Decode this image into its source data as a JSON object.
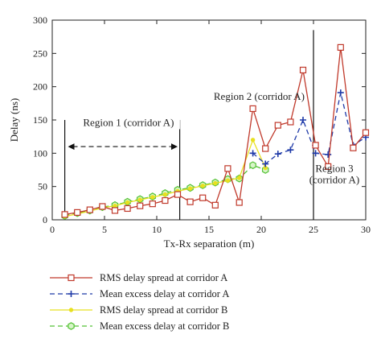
{
  "chart_data": {
    "type": "line",
    "xlabel": "Tx-Rx separation (m)",
    "ylabel": "Delay (ns)",
    "xlim": [
      0,
      30
    ],
    "ylim": [
      0,
      300
    ],
    "xticks": [
      "0",
      "5",
      "10",
      "15",
      "20",
      "25",
      "30"
    ],
    "yticks": [
      "0",
      "50",
      "100",
      "150",
      "200",
      "250",
      "300"
    ],
    "grid": false,
    "legend_position": "below",
    "series": [
      {
        "name": "RMS delay spread at corridor A",
        "color": "#c0392b",
        "line": "solid",
        "marker": "square",
        "x": [
          1.2,
          2.4,
          3.6,
          4.8,
          6.0,
          7.2,
          8.4,
          9.6,
          10.8,
          12.0,
          13.2,
          14.4,
          15.6,
          16.8,
          17.9,
          19.2,
          20.4,
          21.6,
          22.8,
          24.0,
          25.2,
          26.4,
          27.6,
          28.8,
          30.0
        ],
        "values": [
          8,
          11,
          15,
          20,
          14,
          17,
          21,
          24,
          29,
          38,
          27,
          33,
          22,
          77,
          26,
          167,
          107,
          142,
          147,
          225,
          112,
          80,
          259,
          108,
          131
        ]
      },
      {
        "name": "Mean excess delay at corridor A",
        "color": "#1f3aa8",
        "line": "dashed",
        "marker": "plus",
        "x": [
          19.2,
          20.4,
          21.6,
          22.8,
          24.0,
          25.2,
          26.4,
          27.6,
          28.8,
          30.0
        ],
        "values": [
          100,
          84,
          99,
          105,
          150,
          100,
          98,
          191,
          112,
          124
        ]
      },
      {
        "name": "RMS delay spread at corridor B",
        "color": "#e8e020",
        "line": "solid",
        "marker": "dot",
        "x": [
          1.2,
          2.4,
          3.6,
          4.8,
          6.0,
          7.2,
          8.4,
          9.6,
          10.8,
          12.0,
          13.2,
          14.4,
          15.6,
          16.8,
          17.9,
          19.2,
          20.4
        ],
        "values": [
          5,
          9,
          13,
          18,
          21,
          26,
          30,
          34,
          38,
          43,
          47,
          51,
          55,
          59,
          63,
          120,
          78
        ]
      },
      {
        "name": "Mean excess delay at corridor B",
        "color": "#55c236",
        "line": "dashed",
        "marker": "hexagon",
        "x": [
          1.2,
          2.4,
          3.6,
          4.8,
          6.0,
          7.2,
          8.4,
          9.6,
          10.8,
          12.0,
          13.2,
          14.4,
          15.6,
          16.8,
          17.9,
          19.2,
          20.4
        ],
        "values": [
          6,
          10,
          14,
          19,
          22,
          27,
          31,
          35,
          40,
          45,
          48,
          52,
          56,
          61,
          62,
          82,
          75
        ]
      }
    ],
    "annotations": [
      {
        "text": "Region 1 (corridor A)",
        "x": 7.3,
        "y": 141
      },
      {
        "text": "Region 2 (corridor A)",
        "x": 19.8,
        "y": 180
      },
      {
        "text": "Region 3",
        "x": 27.0,
        "y": 72
      },
      {
        "text": "(corridor A)",
        "x": 27.0,
        "y": 55
      }
    ],
    "region_lines": [
      1.2,
      12.2,
      25.0
    ],
    "region1_arrow": {
      "from": 1.5,
      "to": 12.0,
      "y": 110
    }
  }
}
